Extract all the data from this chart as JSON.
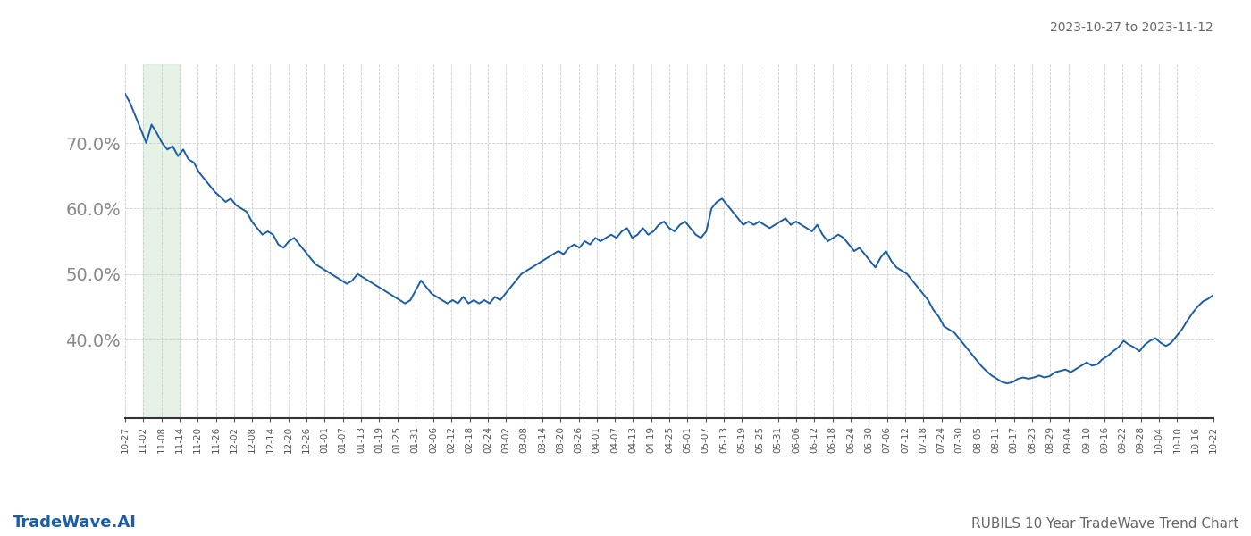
{
  "title_top_right": "2023-10-27 to 2023-11-12",
  "title_bottom_left": "TradeWave.AI",
  "title_bottom_right": "RUBILS 10 Year TradeWave Trend Chart",
  "line_color": "#1a5ea8",
  "line_width": 1.4,
  "shade_color": "#d6ead6",
  "shade_alpha": 0.6,
  "background_color": "#ffffff",
  "grid_color": "#cccccc",
  "ylim": [
    0.28,
    0.82
  ],
  "yticks": [
    0.4,
    0.5,
    0.6,
    0.7
  ],
  "ytick_fontsize": 14,
  "xtick_fontsize": 7.5,
  "xlabels": [
    "10-27",
    "11-02",
    "11-08",
    "11-14",
    "11-20",
    "11-26",
    "12-02",
    "12-08",
    "12-14",
    "12-20",
    "12-26",
    "01-01",
    "01-07",
    "01-13",
    "01-19",
    "01-25",
    "01-31",
    "02-06",
    "02-12",
    "02-18",
    "02-24",
    "03-02",
    "03-08",
    "03-14",
    "03-20",
    "03-26",
    "04-01",
    "04-07",
    "04-13",
    "04-19",
    "04-25",
    "05-01",
    "05-07",
    "05-13",
    "05-19",
    "05-25",
    "05-31",
    "06-06",
    "06-12",
    "06-18",
    "06-24",
    "06-30",
    "07-06",
    "07-12",
    "07-18",
    "07-24",
    "07-30",
    "08-05",
    "08-11",
    "08-17",
    "08-23",
    "08-29",
    "09-04",
    "09-10",
    "09-16",
    "09-22",
    "09-28",
    "10-04",
    "10-10",
    "10-16",
    "10-22"
  ],
  "shade_start_label": "11-02",
  "shade_end_label": "11-14",
  "values": [
    0.775,
    0.76,
    0.74,
    0.72,
    0.7,
    0.728,
    0.715,
    0.7,
    0.69,
    0.695,
    0.68,
    0.69,
    0.675,
    0.67,
    0.655,
    0.645,
    0.635,
    0.625,
    0.618,
    0.61,
    0.615,
    0.605,
    0.6,
    0.595,
    0.58,
    0.57,
    0.56,
    0.565,
    0.56,
    0.545,
    0.54,
    0.55,
    0.555,
    0.545,
    0.535,
    0.525,
    0.515,
    0.51,
    0.505,
    0.5,
    0.495,
    0.49,
    0.485,
    0.49,
    0.5,
    0.495,
    0.49,
    0.485,
    0.48,
    0.475,
    0.47,
    0.465,
    0.46,
    0.455,
    0.46,
    0.475,
    0.49,
    0.48,
    0.47,
    0.465,
    0.46,
    0.455,
    0.46,
    0.455,
    0.465,
    0.455,
    0.46,
    0.455,
    0.46,
    0.455,
    0.465,
    0.46,
    0.47,
    0.48,
    0.49,
    0.5,
    0.505,
    0.51,
    0.515,
    0.52,
    0.525,
    0.53,
    0.535,
    0.53,
    0.54,
    0.545,
    0.54,
    0.55,
    0.545,
    0.555,
    0.55,
    0.555,
    0.56,
    0.555,
    0.565,
    0.57,
    0.555,
    0.56,
    0.57,
    0.56,
    0.565,
    0.575,
    0.58,
    0.57,
    0.565,
    0.575,
    0.58,
    0.57,
    0.56,
    0.555,
    0.565,
    0.6,
    0.61,
    0.615,
    0.605,
    0.595,
    0.585,
    0.575,
    0.58,
    0.575,
    0.58,
    0.575,
    0.57,
    0.575,
    0.58,
    0.585,
    0.575,
    0.58,
    0.575,
    0.57,
    0.565,
    0.575,
    0.56,
    0.55,
    0.555,
    0.56,
    0.555,
    0.545,
    0.535,
    0.54,
    0.53,
    0.52,
    0.51,
    0.525,
    0.535,
    0.52,
    0.51,
    0.505,
    0.5,
    0.49,
    0.48,
    0.47,
    0.46,
    0.445,
    0.435,
    0.42,
    0.415,
    0.41,
    0.4,
    0.39,
    0.38,
    0.37,
    0.36,
    0.352,
    0.345,
    0.34,
    0.335,
    0.333,
    0.335,
    0.34,
    0.342,
    0.34,
    0.342,
    0.345,
    0.342,
    0.344,
    0.35,
    0.352,
    0.354,
    0.35,
    0.355,
    0.36,
    0.365,
    0.36,
    0.362,
    0.37,
    0.375,
    0.382,
    0.388,
    0.398,
    0.392,
    0.388,
    0.382,
    0.392,
    0.398,
    0.402,
    0.395,
    0.39,
    0.395,
    0.405,
    0.415,
    0.428,
    0.44,
    0.45,
    0.458,
    0.462,
    0.468
  ]
}
